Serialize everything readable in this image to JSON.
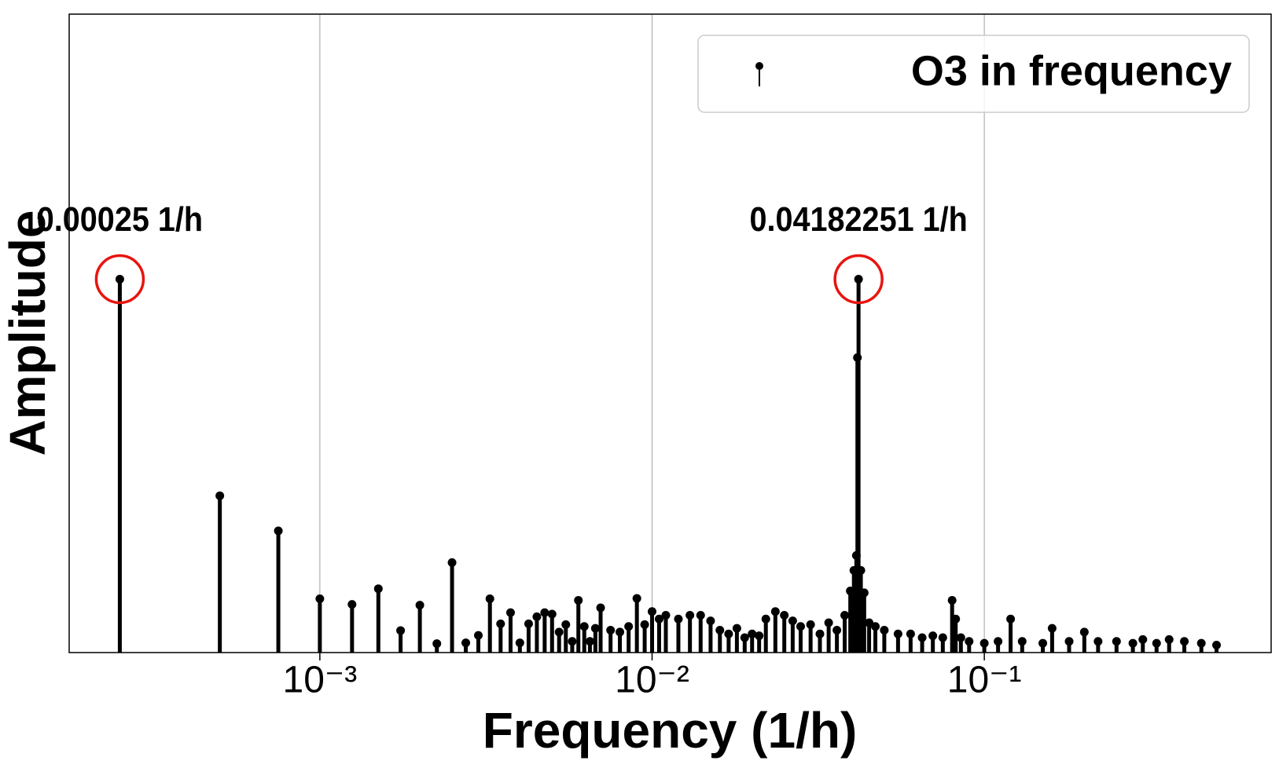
{
  "chart_data": {
    "type": "stem",
    "xlabel": "Frequency (1/h)",
    "ylabel": "Amplitude",
    "xscale": "log",
    "xlim": [
      0.000176,
      0.73
    ],
    "ylim": [
      0,
      1.71
    ],
    "xticks": [
      {
        "value": 0.001,
        "label": "10⁻³"
      },
      {
        "value": 0.01,
        "label": "10⁻²"
      },
      {
        "value": 0.1,
        "label": "10⁻¹"
      }
    ],
    "grid": true,
    "legend": "upper right",
    "annotation_color": "#e8150f",
    "annotations": [
      {
        "text": "0.00025 1/h",
        "x": 0.00025,
        "y": 1.0
      },
      {
        "text": "0.04182251 1/h",
        "x": 0.04182251,
        "y": 1.0
      }
    ],
    "series": [
      {
        "name": "O3 in frequency",
        "color": "#000000",
        "x": [
          0.00025,
          0.0005,
          0.00075,
          0.001,
          0.00125,
          0.0015,
          0.00175,
          0.002,
          0.00225,
          0.0025,
          0.00275,
          0.003,
          0.00325,
          0.0035,
          0.00375,
          0.004,
          0.00425,
          0.0045,
          0.00475,
          0.005,
          0.00525,
          0.0055,
          0.00575,
          0.006,
          0.00625,
          0.0065,
          0.00675,
          0.007,
          0.0075,
          0.008,
          0.0085,
          0.009,
          0.0095,
          0.01,
          0.0105,
          0.011,
          0.012,
          0.013,
          0.014,
          0.015,
          0.016,
          0.017,
          0.018,
          0.019,
          0.02,
          0.021,
          0.022,
          0.0235,
          0.025,
          0.0265,
          0.028,
          0.03,
          0.032,
          0.034,
          0.036,
          0.038,
          0.0395,
          0.0405,
          0.0412,
          0.0415,
          0.04182251,
          0.0425,
          0.0435,
          0.045,
          0.047,
          0.05,
          0.055,
          0.06,
          0.065,
          0.07,
          0.075,
          0.08,
          0.082,
          0.085,
          0.09,
          0.1,
          0.11,
          0.12,
          0.13,
          0.15,
          0.16,
          0.18,
          0.2,
          0.22,
          0.25,
          0.28,
          0.3,
          0.33,
          0.36,
          0.4,
          0.45,
          0.5
        ],
        "values": [
          1.0,
          0.42,
          0.326,
          0.144,
          0.129,
          0.171,
          0.059,
          0.127,
          0.024,
          0.241,
          0.026,
          0.046,
          0.144,
          0.077,
          0.107,
          0.026,
          0.077,
          0.096,
          0.107,
          0.103,
          0.055,
          0.075,
          0.03,
          0.14,
          0.07,
          0.03,
          0.065,
          0.12,
          0.06,
          0.055,
          0.07,
          0.145,
          0.075,
          0.11,
          0.09,
          0.1,
          0.09,
          0.1,
          0.1,
          0.085,
          0.06,
          0.05,
          0.065,
          0.04,
          0.05,
          0.045,
          0.09,
          0.11,
          0.1,
          0.085,
          0.07,
          0.075,
          0.05,
          0.08,
          0.06,
          0.1,
          0.165,
          0.22,
          0.26,
          0.79,
          1.0,
          0.22,
          0.16,
          0.08,
          0.07,
          0.06,
          0.05,
          0.05,
          0.04,
          0.045,
          0.04,
          0.14,
          0.09,
          0.04,
          0.03,
          0.025,
          0.03,
          0.09,
          0.03,
          0.025,
          0.065,
          0.03,
          0.055,
          0.03,
          0.03,
          0.025,
          0.035,
          0.025,
          0.035,
          0.03,
          0.025,
          0.02
        ]
      }
    ]
  }
}
